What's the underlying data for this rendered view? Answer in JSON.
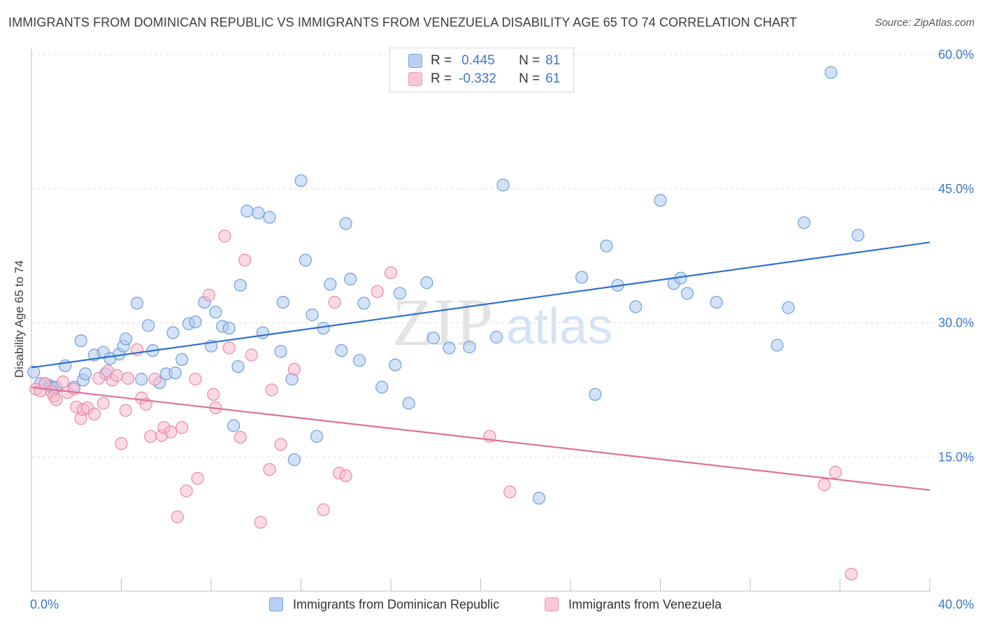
{
  "header": {
    "title": "IMMIGRANTS FROM DOMINICAN REPUBLIC VS IMMIGRANTS FROM VENEZUELA DISABILITY AGE 65 TO 74 CORRELATION CHART",
    "source": "Source: ZipAtlas.com"
  },
  "watermark": {
    "zip": "ZIP",
    "atlas": "atlas"
  },
  "legend": {
    "r_label": "R =",
    "n_label": "N =",
    "rows": [
      {
        "r": "0.445",
        "n": "81"
      },
      {
        "r": "-0.332",
        "n": "61"
      }
    ]
  },
  "colors": {
    "blue_fill": "#aecbf0",
    "blue_stroke": "#6f9fd8",
    "blue_line": "#2f6fcf",
    "pink_fill": "#f7bccd",
    "pink_stroke": "#e98aa8",
    "pink_line": "#e06e9a",
    "axis_text": "#3b78c9",
    "grid": "#dcdcdc"
  },
  "chart_data": {
    "type": "scatter",
    "xlabel": "",
    "ylabel": "Disability Age 65 to 74",
    "xlim": [
      0,
      40
    ],
    "ylim": [
      0,
      60
    ],
    "x_tick_labels": [
      {
        "value": 0,
        "label": "0.0%"
      },
      {
        "value": 40,
        "label": "40.0%"
      }
    ],
    "y_tick_labels": [
      {
        "value": 15,
        "label": "15.0%"
      },
      {
        "value": 30,
        "label": "30.0%"
      },
      {
        "value": 45,
        "label": "45.0%"
      },
      {
        "value": 60,
        "label": "60.0%"
      }
    ],
    "grid": "horizontal dashed",
    "legend_position": "top-center",
    "series": [
      {
        "name": "Immigrants from Dominican Republic",
        "color": "#aecbf0",
        "trend": {
          "x": [
            0,
            40
          ],
          "y": [
            25.0,
            39.0
          ]
        },
        "points": [
          [
            0.1,
            24.5
          ],
          [
            0.4,
            23.2
          ],
          [
            0.6,
            23.2
          ],
          [
            0.8,
            23.0
          ],
          [
            0.9,
            22.8
          ],
          [
            1.0,
            22.7
          ],
          [
            1.1,
            22.8
          ],
          [
            1.5,
            25.2
          ],
          [
            1.9,
            22.8
          ],
          [
            2.2,
            28.0
          ],
          [
            2.3,
            23.6
          ],
          [
            2.4,
            24.3
          ],
          [
            2.8,
            26.4
          ],
          [
            3.2,
            26.7
          ],
          [
            3.3,
            24.3
          ],
          [
            3.5,
            26.0
          ],
          [
            3.9,
            26.5
          ],
          [
            4.1,
            27.4
          ],
          [
            4.2,
            28.2
          ],
          [
            4.7,
            32.2
          ],
          [
            4.9,
            23.7
          ],
          [
            5.2,
            29.7
          ],
          [
            5.4,
            26.9
          ],
          [
            5.7,
            23.3
          ],
          [
            6.0,
            24.3
          ],
          [
            6.3,
            28.9
          ],
          [
            6.4,
            24.4
          ],
          [
            6.7,
            25.9
          ],
          [
            7.0,
            29.9
          ],
          [
            7.3,
            30.1
          ],
          [
            7.7,
            32.3
          ],
          [
            8.0,
            27.4
          ],
          [
            8.2,
            31.2
          ],
          [
            8.5,
            29.6
          ],
          [
            8.8,
            29.4
          ],
          [
            9.0,
            18.5
          ],
          [
            9.2,
            25.1
          ],
          [
            9.3,
            34.2
          ],
          [
            9.6,
            42.5
          ],
          [
            10.1,
            42.3
          ],
          [
            10.3,
            28.9
          ],
          [
            10.6,
            41.8
          ],
          [
            11.1,
            26.8
          ],
          [
            11.2,
            32.3
          ],
          [
            11.6,
            23.7
          ],
          [
            11.7,
            14.7
          ],
          [
            12.0,
            45.9
          ],
          [
            12.2,
            37.0
          ],
          [
            12.5,
            30.9
          ],
          [
            12.7,
            17.3
          ],
          [
            13.0,
            29.4
          ],
          [
            13.3,
            34.3
          ],
          [
            13.8,
            26.9
          ],
          [
            14.0,
            41.1
          ],
          [
            14.2,
            34.9
          ],
          [
            14.6,
            25.8
          ],
          [
            14.8,
            32.2
          ],
          [
            15.6,
            22.8
          ],
          [
            16.2,
            25.3
          ],
          [
            16.4,
            33.3
          ],
          [
            16.8,
            21.0
          ],
          [
            17.6,
            34.5
          ],
          [
            17.9,
            28.3
          ],
          [
            18.6,
            27.2
          ],
          [
            19.5,
            27.3
          ],
          [
            20.7,
            28.4
          ],
          [
            21.0,
            45.4
          ],
          [
            22.6,
            10.4
          ],
          [
            24.5,
            35.1
          ],
          [
            25.1,
            22.0
          ],
          [
            25.6,
            38.6
          ],
          [
            26.1,
            34.2
          ],
          [
            26.9,
            31.8
          ],
          [
            28.0,
            43.7
          ],
          [
            28.6,
            34.4
          ],
          [
            28.9,
            35.0
          ],
          [
            29.2,
            33.3
          ],
          [
            30.5,
            32.3
          ],
          [
            33.2,
            27.5
          ],
          [
            33.7,
            31.7
          ],
          [
            34.4,
            41.2
          ],
          [
            35.6,
            58.0
          ],
          [
            36.8,
            39.8
          ]
        ]
      },
      {
        "name": "Immigrants from Venezuela",
        "color": "#f7bccd",
        "trend": {
          "x": [
            0,
            40
          ],
          "y": [
            22.8,
            11.3
          ]
        },
        "points": [
          [
            0.2,
            22.6
          ],
          [
            0.4,
            22.4
          ],
          [
            0.6,
            23.2
          ],
          [
            0.9,
            22.3
          ],
          [
            1.0,
            21.8
          ],
          [
            1.1,
            21.4
          ],
          [
            1.4,
            23.4
          ],
          [
            1.6,
            22.2
          ],
          [
            1.9,
            22.6
          ],
          [
            2.0,
            20.6
          ],
          [
            2.2,
            19.3
          ],
          [
            2.3,
            20.3
          ],
          [
            2.5,
            20.5
          ],
          [
            2.8,
            19.8
          ],
          [
            3.0,
            23.8
          ],
          [
            3.2,
            21.0
          ],
          [
            3.4,
            24.6
          ],
          [
            3.6,
            23.6
          ],
          [
            3.8,
            24.1
          ],
          [
            4.0,
            16.5
          ],
          [
            4.2,
            20.2
          ],
          [
            4.3,
            23.8
          ],
          [
            4.7,
            27.0
          ],
          [
            4.9,
            21.6
          ],
          [
            5.1,
            20.9
          ],
          [
            5.3,
            17.3
          ],
          [
            5.5,
            23.7
          ],
          [
            5.8,
            17.4
          ],
          [
            5.9,
            18.3
          ],
          [
            6.2,
            17.8
          ],
          [
            6.5,
            8.3
          ],
          [
            6.7,
            18.3
          ],
          [
            6.9,
            11.2
          ],
          [
            7.3,
            23.7
          ],
          [
            7.4,
            12.6
          ],
          [
            7.9,
            33.1
          ],
          [
            8.1,
            22.0
          ],
          [
            8.2,
            20.5
          ],
          [
            8.6,
            39.7
          ],
          [
            8.8,
            27.2
          ],
          [
            9.3,
            17.2
          ],
          [
            9.5,
            37.0
          ],
          [
            9.8,
            26.4
          ],
          [
            10.2,
            7.7
          ],
          [
            10.6,
            13.6
          ],
          [
            10.7,
            22.5
          ],
          [
            11.1,
            16.4
          ],
          [
            11.7,
            24.8
          ],
          [
            13.0,
            9.1
          ],
          [
            13.5,
            32.3
          ],
          [
            13.7,
            13.2
          ],
          [
            14.0,
            12.9
          ],
          [
            15.4,
            33.5
          ],
          [
            16.0,
            35.6
          ],
          [
            20.4,
            17.3
          ],
          [
            21.3,
            11.1
          ],
          [
            35.3,
            11.9
          ],
          [
            35.8,
            13.3
          ],
          [
            36.5,
            1.9
          ]
        ]
      }
    ]
  }
}
